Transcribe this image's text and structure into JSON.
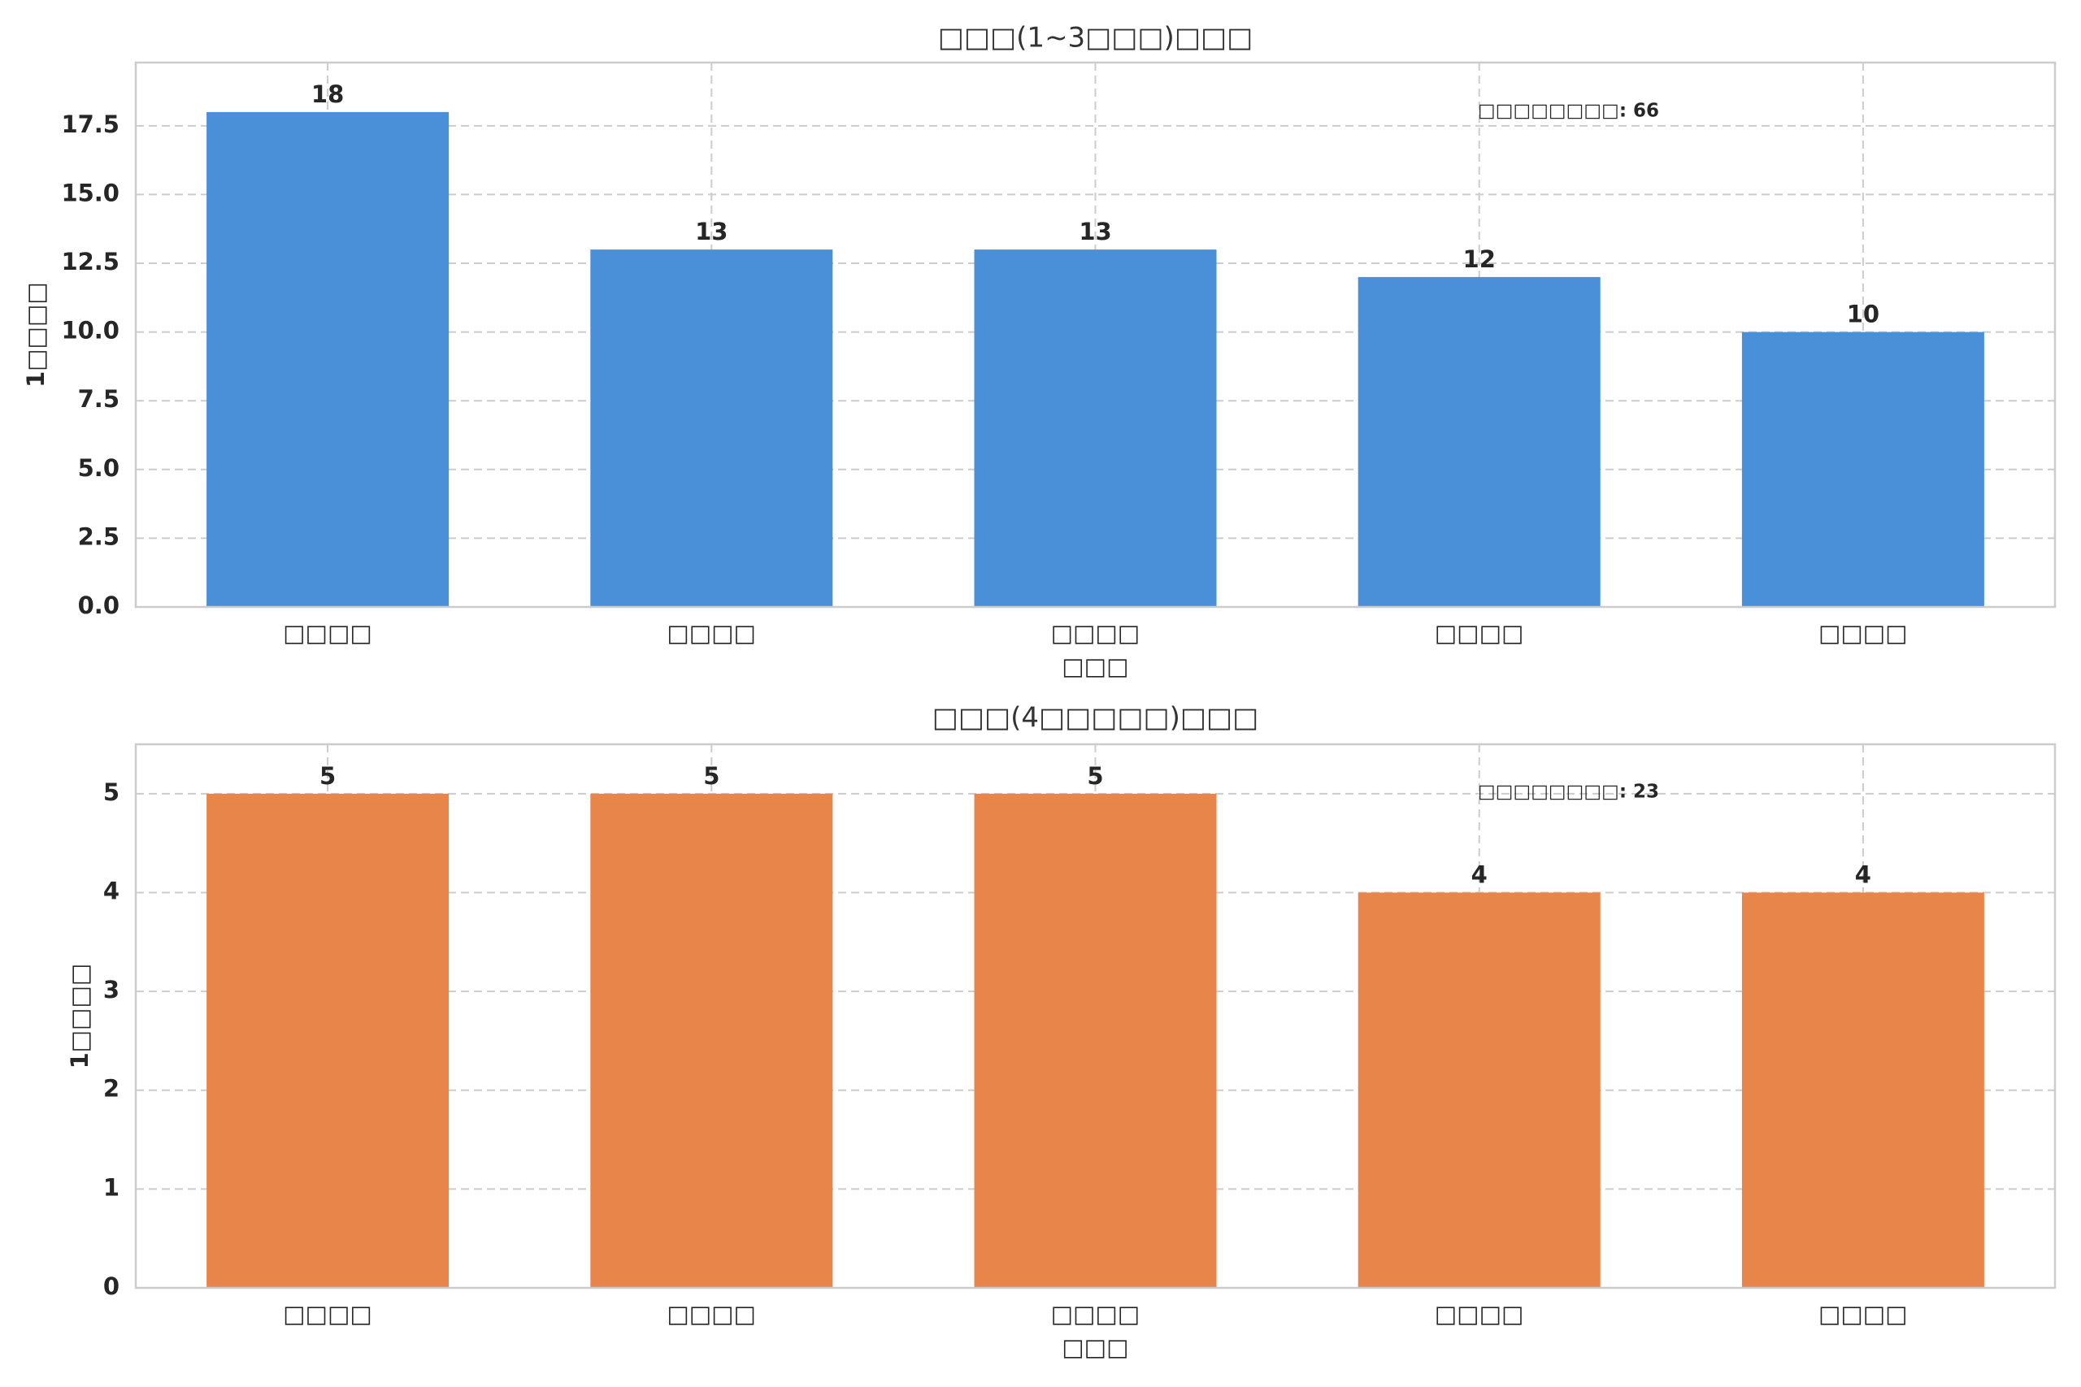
{
  "chart_data": [
    {
      "type": "bar",
      "title": "□□□(1~3□□□)□□□",
      "xlabel": "□□□",
      "ylabel": "1□□□□",
      "categories": [
        "□□□□",
        "□□□□",
        "□□□□",
        "□□□□",
        "□□□□"
      ],
      "values": [
        18,
        13,
        13,
        12,
        10
      ],
      "value_labels": [
        "18",
        "13",
        "13",
        "12",
        "10"
      ],
      "ylim": [
        0,
        19.8
      ],
      "yticks": [
        0,
        2.5,
        5,
        7.5,
        10,
        12.5,
        15,
        17.5
      ],
      "ytick_labels": [
        "0.0",
        "2.5",
        "5.0",
        "7.5",
        "10.0",
        "12.5",
        "15.0",
        "17.5"
      ],
      "annotation": "□□□□□□□□: 66",
      "color": "#4a90d9",
      "grid": true
    },
    {
      "type": "bar",
      "title": "□□□(4□□□□□)□□□",
      "xlabel": "□□□",
      "ylabel": "1□□□□",
      "categories": [
        "□□□□",
        "□□□□",
        "□□□□",
        "□□□□",
        "□□□□"
      ],
      "values": [
        5,
        5,
        5,
        4,
        4
      ],
      "value_labels": [
        "5",
        "5",
        "5",
        "4",
        "4"
      ],
      "ylim": [
        0,
        5.5
      ],
      "yticks": [
        0,
        1,
        2,
        3,
        4,
        5
      ],
      "ytick_labels": [
        "0",
        "1",
        "2",
        "3",
        "4",
        "5"
      ],
      "annotation": "□□□□□□□□: 23",
      "color": "#e8854b",
      "grid": true
    }
  ]
}
